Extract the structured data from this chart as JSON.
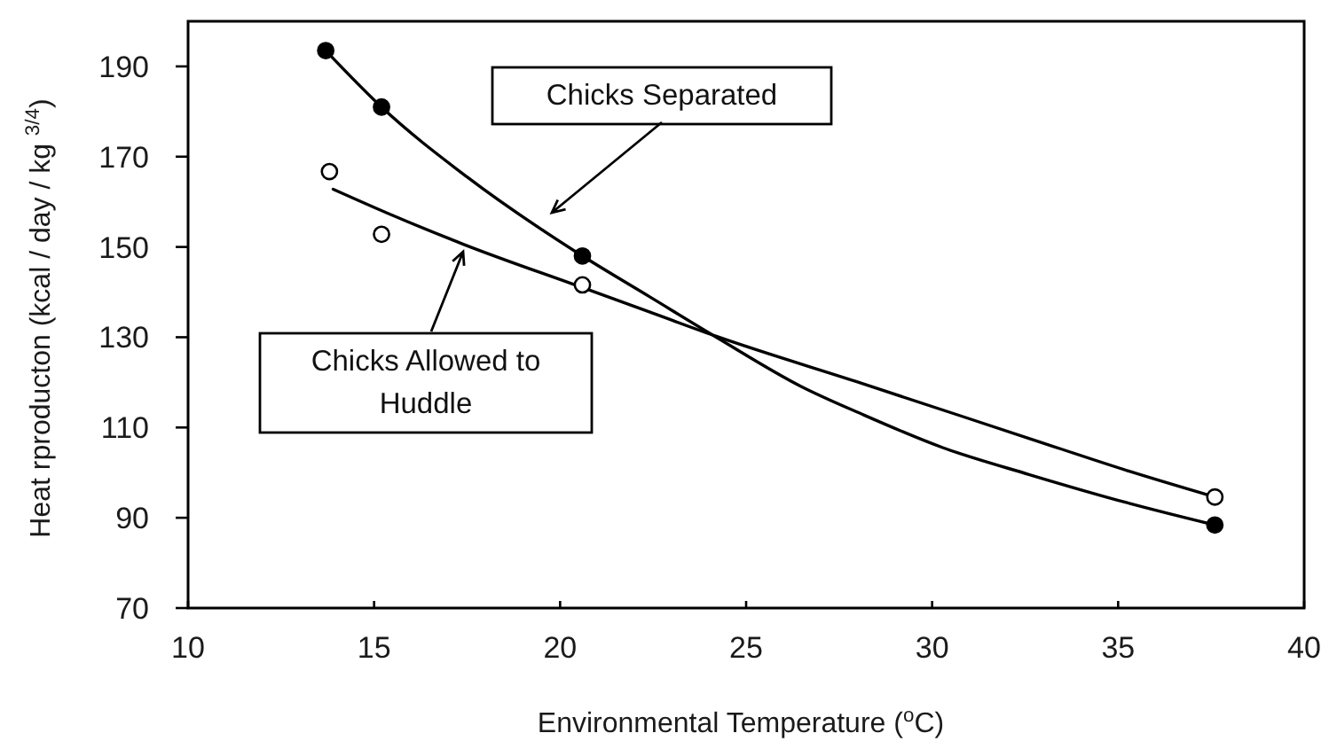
{
  "chart_data": {
    "type": "scatter",
    "xlabel": "Environmental Temperature ($^{o}$C)",
    "ylabel": "Heat rproducton (kcal / day / kg $^{3/4}$)",
    "xlim": [
      10,
      40
    ],
    "ylim": [
      70,
      200
    ],
    "xticks": [
      10,
      15,
      20,
      25,
      30,
      35,
      40
    ],
    "yticks": [
      70,
      90,
      110,
      130,
      150,
      170,
      190
    ],
    "series": [
      {
        "marker": "circle",
        "color": "#000000",
        "x": [
          13.7,
          15.2,
          20.6,
          37.6
        ],
        "values": [
          193.5,
          181,
          148,
          88.4
        ]
      },
      {
        "marker": "circle",
        "color": "#ffffff",
        "x": [
          13.8,
          15.2,
          20.6,
          37.6
        ],
        "values": [
          166.7,
          152.8,
          141.6,
          94.6
        ]
      },
      {
        "type": "line",
        "name": "Chicks Separated",
        "color": "#000000",
        "x": [
          13.7,
          15.2,
          17.5,
          20.6,
          22.4,
          24.2,
          26.5,
          28.1,
          30.3,
          32.6,
          35.3,
          37.6
        ],
        "values": [
          193.5,
          181,
          165.5,
          148,
          139,
          130,
          119,
          113,
          105.5,
          99.6,
          93.2,
          88.4
        ]
      },
      {
        "type": "line",
        "name": "Chicks Allowed to Huddle",
        "color": "#000000",
        "x": [
          13.9,
          15.5,
          17.4,
          20.6,
          22.4,
          24.2,
          28.1,
          32.6,
          35.3,
          37.6
        ],
        "values": [
          162.8,
          157,
          150.6,
          141,
          135.6,
          130.2,
          119.8,
          107.6,
          100.3,
          94.6
        ]
      }
    ]
  }
}
